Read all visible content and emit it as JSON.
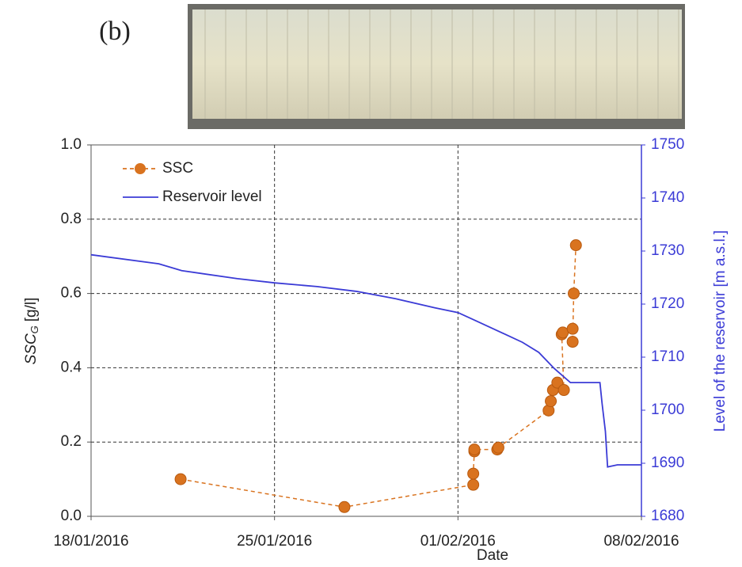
{
  "panel_label": "(b)",
  "chart_data": {
    "type": "line",
    "x_label": "Date",
    "y_label": {
      "main": "SSC",
      "sub": "G",
      "unit": "[g/l]"
    },
    "y2_label": "Level of the reservoir  [m a.s.l.]",
    "xlim": [
      "2016-01-18T00:00",
      "2016-02-08T00:00"
    ],
    "xticks": [
      {
        "value": "2016-01-18T00:00",
        "label": "18/01/2016"
      },
      {
        "value": "2016-01-25T00:00",
        "label": "25/01/2016"
      },
      {
        "value": "2016-02-01T00:00",
        "label": "01/02/2016"
      },
      {
        "value": "2016-02-08T00:00",
        "label": "08/02/2016"
      }
    ],
    "ylim": [
      0,
      1
    ],
    "yticks": [
      {
        "value": 0,
        "label": "0.0"
      },
      {
        "value": 0.2,
        "label": "0.2"
      },
      {
        "value": 0.4,
        "label": "0.4"
      },
      {
        "value": 0.6,
        "label": "0.6"
      },
      {
        "value": 0.8,
        "label": "0.8"
      },
      {
        "value": 1,
        "label": "1.0"
      }
    ],
    "y2lim": [
      1680,
      1750
    ],
    "y2ticks": [
      1680,
      1690,
      1700,
      1710,
      1720,
      1730,
      1740,
      1750
    ],
    "y2_color": "#3b3bd6",
    "grid": true,
    "legend": "upper left",
    "series": [
      {
        "name": "SSC",
        "color": "#d9731f",
        "style": "dashed-markers",
        "x": [
          "2016-01-21T10:00",
          "2016-01-27T16:00",
          "2016-02-01T14:00",
          "2016-02-01T14:00",
          "2016-02-01T15:00",
          "2016-02-01T15:00",
          "2016-02-02T12:00",
          "2016-02-02T13:00",
          "2016-02-04T11:00",
          "2016-02-04T13:00",
          "2016-02-04T15:00",
          "2016-02-04T19:00",
          "2016-02-05T01:00",
          "2016-02-04T23:00",
          "2016-02-05T00:00",
          "2016-02-05T09:00",
          "2016-02-05T09:00",
          "2016-02-05T10:00",
          "2016-02-05T12:00"
        ],
        "values": [
          0.1,
          0.025,
          0.085,
          0.115,
          0.175,
          0.18,
          0.18,
          0.185,
          0.285,
          0.31,
          0.34,
          0.36,
          0.34,
          0.49,
          0.495,
          0.505,
          0.47,
          0.6,
          0.73
        ]
      },
      {
        "name": "Reservoir level",
        "color": "#3b3bd6",
        "style": "solid",
        "axis": "y2",
        "x": [
          "2016-01-18T00:00",
          "2016-01-20T14:00",
          "2016-01-21T11:00",
          "2016-01-23T14:00",
          "2016-01-25T00:00",
          "2016-01-26T15:00",
          "2016-01-28T03:00",
          "2016-01-29T15:00",
          "2016-01-31T03:00",
          "2016-02-01T00:00",
          "2016-02-01T16:00",
          "2016-02-02T13:00",
          "2016-02-03T11:00",
          "2016-02-04T02:00",
          "2016-02-04T16:00",
          "2016-02-05T07:00",
          "2016-02-05T21:00",
          "2016-02-06T10:00",
          "2016-02-06T12:00",
          "2016-02-06T15:00",
          "2016-02-06T17:00",
          "2016-02-07T02:00",
          "2016-02-08T00:00"
        ],
        "values": [
          1729.3,
          1727.6,
          1726.3,
          1724.8,
          1724.0,
          1723.3,
          1722.4,
          1721.0,
          1719.3,
          1718.4,
          1716.9,
          1714.9,
          1712.8,
          1710.9,
          1707.9,
          1705.2,
          1705.2,
          1705.2,
          1701.2,
          1696.0,
          1689.3,
          1689.7,
          1689.7
        ]
      }
    ]
  }
}
